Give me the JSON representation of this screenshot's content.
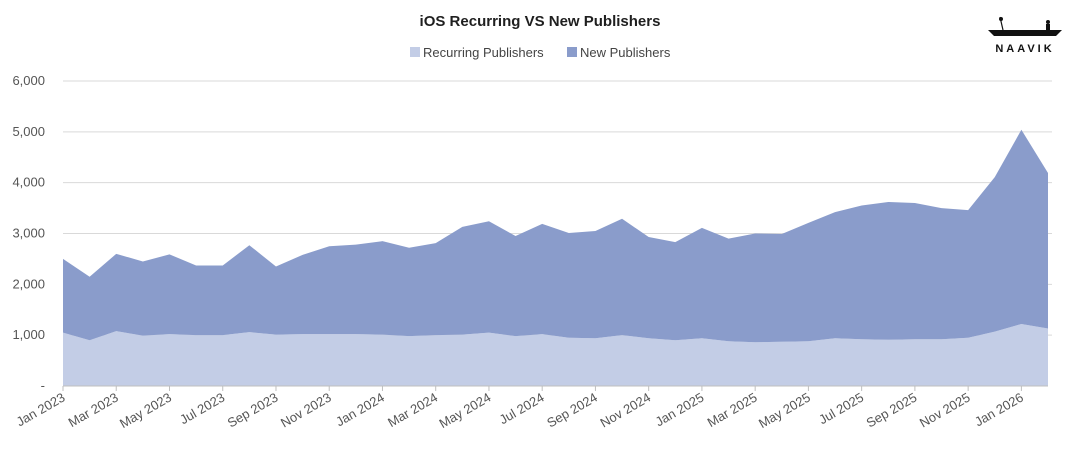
{
  "brand": {
    "logo_text": "NAAVIK"
  },
  "chart_data": {
    "type": "area",
    "stacked": true,
    "title": "iOS Recurring VS New Publishers",
    "xlabel": "",
    "ylabel": "",
    "ylim": [
      0,
      6000
    ],
    "y_ticks": [
      "-",
      "1,000",
      "2,000",
      "3,000",
      "4,000",
      "5,000",
      "6,000"
    ],
    "y_tick_values": [
      0,
      1000,
      2000,
      3000,
      4000,
      5000,
      6000
    ],
    "grid": true,
    "legend_position": "top-center",
    "x": [
      "Jan 2023",
      "Feb 2023",
      "Mar 2023",
      "Apr 2023",
      "May 2023",
      "Jun 2023",
      "Jul 2023",
      "Aug 2023",
      "Sep 2023",
      "Oct 2023",
      "Nov 2023",
      "Dec 2023",
      "Jan 2024",
      "Feb 2024",
      "Mar 2024",
      "Apr 2024",
      "May 2024",
      "Jun 2024",
      "Jul 2024",
      "Aug 2024",
      "Sep 2024",
      "Oct 2024",
      "Nov 2024",
      "Dec 2024",
      "Jan 2025",
      "Feb 2025",
      "Mar 2025",
      "Apr 2025",
      "May 2025",
      "Jun 2025",
      "Jul 2025",
      "Aug 2025",
      "Sep 2025",
      "Oct 2025",
      "Nov 2025",
      "Dec 2025",
      "Jan 2026",
      "Feb 2026"
    ],
    "x_tick_labels": [
      "Jan 2023",
      "Mar 2023",
      "May 2023",
      "Jul 2023",
      "Sep 2023",
      "Nov 2023",
      "Jan 2024",
      "Mar 2024",
      "May 2024",
      "Jul 2024",
      "Sep 2024",
      "Nov 2024",
      "Jan 2025",
      "Mar 2025",
      "May 2025",
      "Jul 2025",
      "Sep 2025",
      "Nov 2025",
      "Jan 2026"
    ],
    "series": [
      {
        "name": "Recurring Publishers",
        "color": "#c3cde6",
        "values": [
          1050,
          900,
          1080,
          990,
          1020,
          1000,
          1000,
          1060,
          1010,
          1020,
          1020,
          1020,
          1010,
          980,
          1000,
          1010,
          1050,
          980,
          1020,
          950,
          940,
          1000,
          940,
          900,
          940,
          880,
          860,
          870,
          880,
          940,
          920,
          910,
          920,
          920,
          950,
          1070,
          1220,
          1130
        ]
      },
      {
        "name": "New Publishers",
        "color": "#8a9ccb",
        "values": [
          1450,
          1250,
          1520,
          1460,
          1570,
          1370,
          1370,
          1710,
          1340,
          1560,
          1730,
          1760,
          1840,
          1740,
          1810,
          2120,
          2190,
          1970,
          2170,
          2060,
          2110,
          2290,
          1990,
          1930,
          2170,
          2020,
          2140,
          2120,
          2330,
          2480,
          2630,
          2710,
          2680,
          2580,
          2510,
          3040,
          3820,
          3060
        ]
      }
    ]
  }
}
